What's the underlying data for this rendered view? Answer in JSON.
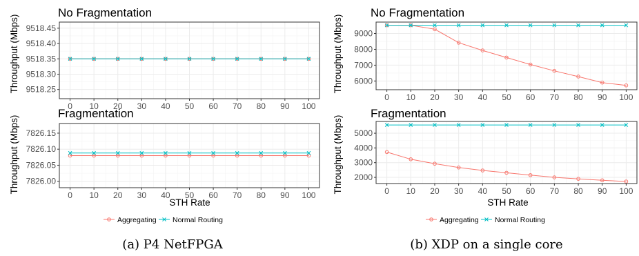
{
  "colors": {
    "aggregating": "#f8766d",
    "normal_routing": "#00bfc4",
    "grid_major": "#ebebeb",
    "grid_minor": "#f5f5f5",
    "panel_border": "#333333"
  },
  "left": {
    "caption": "(a) P4 NetFPGA",
    "xlabel": "STH Rate",
    "ylabel": "Throughput (Mbps)",
    "legend": [
      "Aggregating",
      "Normal Routing"
    ]
  },
  "right": {
    "caption": "(b) XDP on a single core",
    "xlabel": "STH Rate",
    "ylabel": "Throughput (Mbps)",
    "legend": [
      "Aggregating",
      "Normal Routing"
    ]
  },
  "chart_data": [
    {
      "type": "line",
      "title": "No Fragmentation",
      "ylabel": "Throughput (Mbps)",
      "x": [
        0,
        10,
        20,
        30,
        40,
        50,
        60,
        70,
        80,
        90,
        100
      ],
      "ylim": [
        9518.22,
        9518.47
      ],
      "yticks": [
        "9518.25",
        "9518.30",
        "9518.35",
        "9518.40",
        "9518.45"
      ],
      "series": [
        {
          "name": "Aggregating",
          "values": [
            9518.35,
            9518.35,
            9518.35,
            9518.35,
            9518.35,
            9518.35,
            9518.35,
            9518.35,
            9518.35,
            9518.35,
            9518.35
          ]
        },
        {
          "name": "Normal Routing",
          "values": [
            9518.35,
            9518.35,
            9518.35,
            9518.35,
            9518.35,
            9518.35,
            9518.35,
            9518.35,
            9518.35,
            9518.35,
            9518.35
          ]
        }
      ],
      "legend": "bottom"
    },
    {
      "type": "line",
      "title": "Fragmentation",
      "ylabel": "Throughput (Mbps)",
      "xlabel": "STH Rate",
      "x": [
        0,
        10,
        20,
        30,
        40,
        50,
        60,
        70,
        80,
        90,
        100
      ],
      "ylim": [
        7825.98,
        7826.18
      ],
      "yticks": [
        "7826.00",
        "7826.05",
        "7826.10",
        "7826.15"
      ],
      "series": [
        {
          "name": "Aggregating",
          "values": [
            7826.08,
            7826.08,
            7826.08,
            7826.08,
            7826.08,
            7826.08,
            7826.08,
            7826.08,
            7826.08,
            7826.08,
            7826.08
          ]
        },
        {
          "name": "Normal Routing",
          "values": [
            7826.088,
            7826.088,
            7826.088,
            7826.088,
            7826.088,
            7826.088,
            7826.088,
            7826.088,
            7826.088,
            7826.088,
            7826.088
          ]
        }
      ],
      "legend": "bottom"
    },
    {
      "type": "line",
      "title": "No Fragmentation",
      "ylabel": "Throughput (Mbps)",
      "x": [
        0,
        10,
        20,
        30,
        40,
        50,
        60,
        70,
        80,
        90,
        100
      ],
      "ylim": [
        5450,
        9720
      ],
      "yticks": [
        "6000",
        "7000",
        "8000",
        "9000"
      ],
      "series": [
        {
          "name": "Aggregating",
          "values": [
            9520,
            9520,
            9270,
            8420,
            7930,
            7480,
            7040,
            6640,
            6280,
            5900,
            5720
          ]
        },
        {
          "name": "Normal Routing",
          "values": [
            9520,
            9520,
            9520,
            9520,
            9520,
            9520,
            9520,
            9520,
            9520,
            9520,
            9520
          ]
        }
      ],
      "legend": "bottom"
    },
    {
      "type": "line",
      "title": "Fragmentation",
      "ylabel": "Throughput (Mbps)",
      "xlabel": "STH Rate",
      "x": [
        0,
        10,
        20,
        30,
        40,
        50,
        60,
        70,
        80,
        90,
        100
      ],
      "ylim": [
        1580,
        5800
      ],
      "yticks": [
        "2000",
        "3000",
        "4000",
        "5000"
      ],
      "series": [
        {
          "name": "Aggregating",
          "values": [
            3720,
            3230,
            2930,
            2670,
            2470,
            2310,
            2150,
            2000,
            1900,
            1800,
            1720
          ]
        },
        {
          "name": "Normal Routing",
          "values": [
            5560,
            5560,
            5560,
            5560,
            5560,
            5560,
            5560,
            5560,
            5560,
            5560,
            5560
          ]
        }
      ],
      "legend": "bottom"
    }
  ]
}
